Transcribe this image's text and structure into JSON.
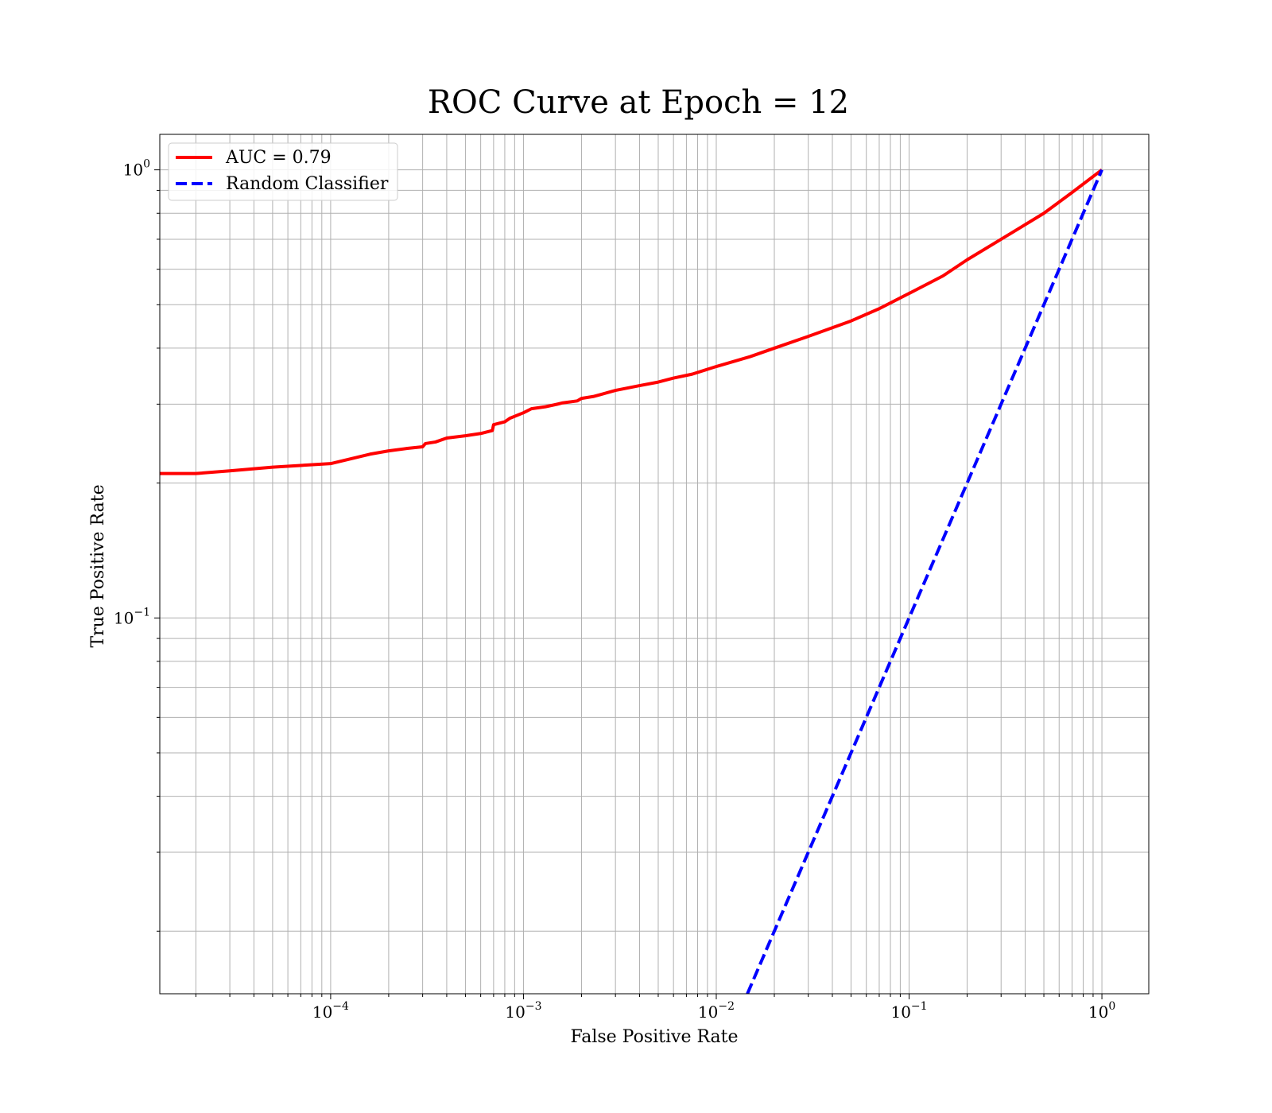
{
  "chart_data": {
    "type": "line",
    "title": "ROC Curve at Epoch = 12",
    "xlabel": "False Positive Rate",
    "ylabel": "True Positive Rate",
    "xscale": "log",
    "yscale": "log",
    "xlim": [
      1.3e-05,
      1.75
    ],
    "ylim": [
      0.0145,
      1.2
    ],
    "grid": "both (major and minor)",
    "legend_position": "top-left",
    "x_ticks": [
      {
        "base": "10",
        "exp": "−4",
        "value": 0.0001
      },
      {
        "base": "10",
        "exp": "−3",
        "value": 0.001
      },
      {
        "base": "10",
        "exp": "−2",
        "value": 0.01
      },
      {
        "base": "10",
        "exp": "−1",
        "value": 0.1
      },
      {
        "base": "10",
        "exp": "0",
        "value": 1
      }
    ],
    "y_ticks": [
      {
        "base": "10",
        "exp": "−1",
        "value": 0.1
      },
      {
        "base": "10",
        "exp": "0",
        "value": 1
      }
    ],
    "series": [
      {
        "name": "AUC = 0.79",
        "color": "#ff0000",
        "style": "solid",
        "x": [
          1.3e-05,
          2e-05,
          3e-05,
          5e-05,
          0.0001,
          0.00016,
          0.0002,
          0.00025,
          0.0003,
          0.00031,
          0.00035,
          0.0004,
          0.0005,
          0.0006,
          0.00069,
          0.0007,
          0.0008,
          0.00085,
          0.001,
          0.0011,
          0.0013,
          0.0015,
          0.0016,
          0.0019,
          0.002,
          0.0023,
          0.0025,
          0.003,
          0.004,
          0.005,
          0.006,
          0.0075,
          0.01,
          0.015,
          0.02,
          0.03,
          0.05,
          0.07,
          0.1,
          0.15,
          0.2,
          0.3,
          0.5,
          0.7,
          1.0
        ],
        "y": [
          0.21,
          0.21,
          0.213,
          0.217,
          0.221,
          0.232,
          0.236,
          0.239,
          0.241,
          0.245,
          0.247,
          0.252,
          0.255,
          0.258,
          0.262,
          0.27,
          0.274,
          0.279,
          0.287,
          0.293,
          0.296,
          0.3,
          0.302,
          0.305,
          0.309,
          0.312,
          0.315,
          0.322,
          0.33,
          0.336,
          0.343,
          0.35,
          0.364,
          0.383,
          0.4,
          0.425,
          0.46,
          0.49,
          0.53,
          0.58,
          0.63,
          0.7,
          0.8,
          0.89,
          1.0
        ]
      },
      {
        "name": "Random Classifier",
        "color": "#0000ff",
        "style": "dashed",
        "x": [
          0.0145,
          1.0
        ],
        "y": [
          0.0145,
          1.0
        ]
      }
    ]
  }
}
